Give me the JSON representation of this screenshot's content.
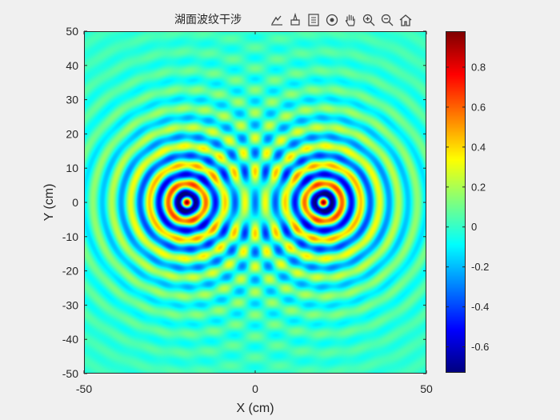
{
  "toolbar": {
    "icons": [
      "data-tips-icon",
      "brush-icon",
      "legend-icon",
      "rotate-icon",
      "pan-hand-icon",
      "zoom-in-icon",
      "zoom-out-icon",
      "home-icon"
    ]
  },
  "chart_data": {
    "type": "heatmap",
    "title": "湖面波纹干涉",
    "xlabel": "X (cm)",
    "ylabel": "Y (cm)",
    "xlim": [
      -50,
      50
    ],
    "ylim": [
      -50,
      50
    ],
    "x_ticks": [
      -50,
      0,
      50
    ],
    "y_ticks": [
      50,
      40,
      30,
      20,
      10,
      0,
      -10,
      -20,
      -30,
      -40,
      -50
    ],
    "colormap": "jet",
    "clim": [
      -0.73,
      0.98
    ],
    "colorbar_ticks": [
      0.8,
      0.6,
      0.4,
      0.2,
      0,
      -0.2,
      -0.4,
      -0.6
    ],
    "sources": [
      {
        "x": -20,
        "y": 0
      },
      {
        "x": 20,
        "y": 0
      }
    ],
    "grid": false
  }
}
